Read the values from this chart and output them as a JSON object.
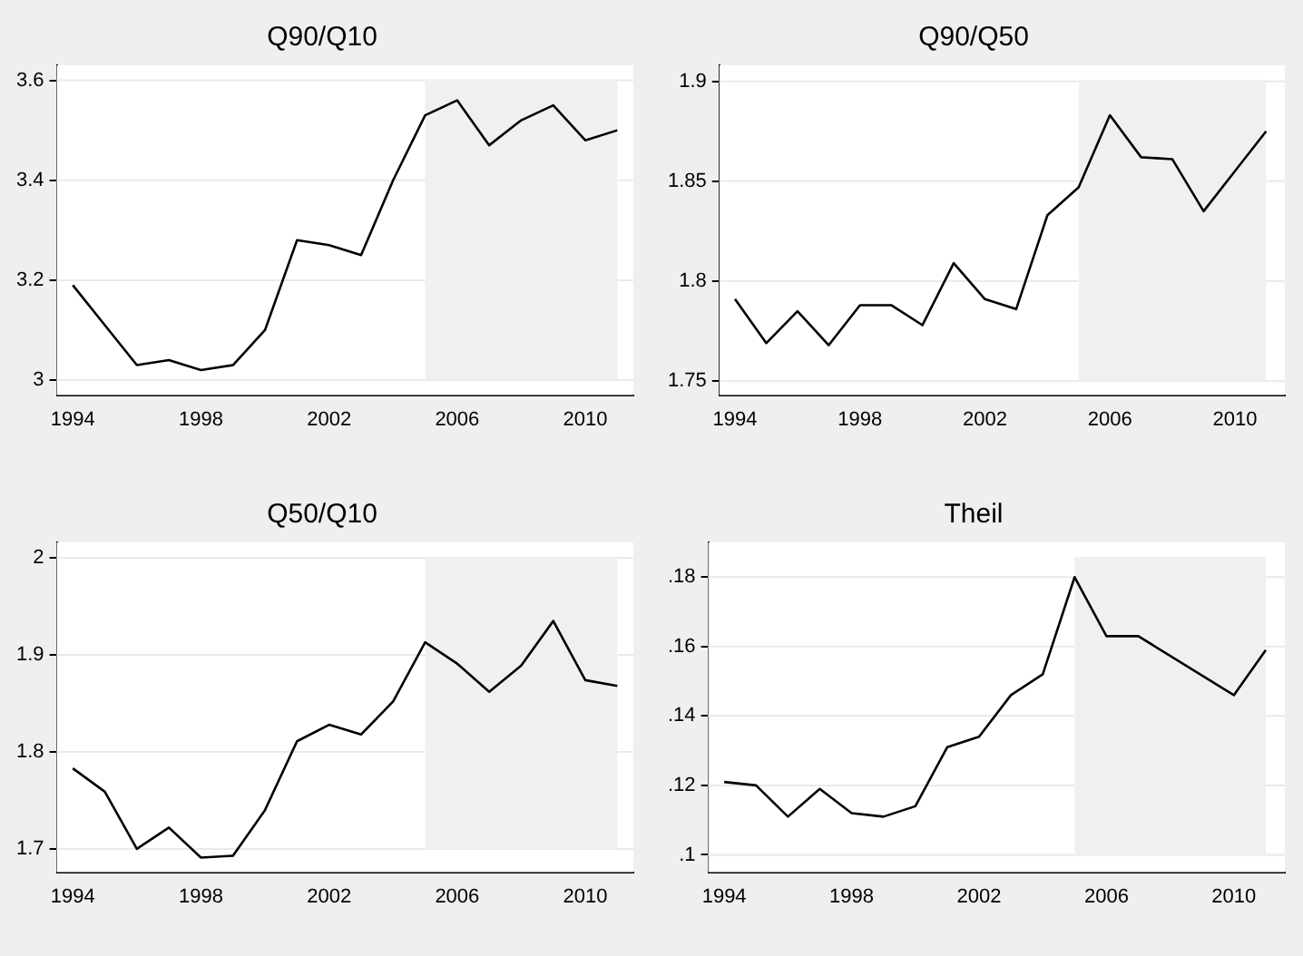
{
  "chart_data": [
    {
      "type": "line",
      "title": "Q90/Q10",
      "x": [
        1994,
        1995,
        1996,
        1997,
        1998,
        1999,
        2000,
        2001,
        2002,
        2003,
        2004,
        2005,
        2006,
        2007,
        2008,
        2009,
        2010,
        2011
      ],
      "values": [
        3.19,
        3.11,
        3.03,
        3.04,
        3.02,
        3.03,
        3.1,
        3.28,
        3.27,
        3.25,
        3.4,
        3.53,
        3.56,
        3.47,
        3.52,
        3.55,
        3.48,
        3.5
      ],
      "color": "#000000",
      "marker": "none",
      "xlim": [
        1993.5,
        2011.5
      ],
      "xticks": [
        1994,
        1998,
        2002,
        2006,
        2010
      ],
      "ylim": [
        2.97,
        3.63
      ],
      "yticks": [
        3,
        3.2,
        3.4,
        3.6
      ],
      "grid": "y",
      "bands": [
        {
          "axis": "x",
          "from": 2005,
          "to": 2011,
          "color": "#f0f0f0"
        }
      ]
    },
    {
      "type": "line",
      "title": "Q90/Q50",
      "x": [
        1994,
        1995,
        1996,
        1997,
        1998,
        1999,
        2000,
        2001,
        2002,
        2003,
        2004,
        2005,
        2006,
        2007,
        2008,
        2009,
        2010,
        2011
      ],
      "values": [
        1.791,
        1.769,
        1.785,
        1.768,
        1.788,
        1.788,
        1.778,
        1.809,
        1.791,
        1.786,
        1.833,
        1.847,
        1.883,
        1.862,
        1.861,
        1.835,
        1.855,
        1.875
      ],
      "color": "#000000",
      "marker": "none",
      "xlim": [
        1993.5,
        2011.6
      ],
      "xticks": [
        1994,
        1998,
        2002,
        2006,
        2010
      ],
      "ylim": [
        1.743,
        1.908
      ],
      "yticks": [
        1.75,
        1.8,
        1.85,
        1.9
      ],
      "grid": "y",
      "bands": [
        {
          "axis": "x",
          "from": 2005,
          "to": 2011,
          "color": "#f0f0f0"
        }
      ]
    },
    {
      "type": "line",
      "title": "Q50/Q10",
      "x": [
        1994,
        1995,
        1996,
        1997,
        1998,
        1999,
        2000,
        2001,
        2002,
        2003,
        2004,
        2005,
        2006,
        2007,
        2008,
        2009,
        2010,
        2011
      ],
      "values": [
        1.783,
        1.759,
        1.7,
        1.722,
        1.691,
        1.693,
        1.74,
        1.811,
        1.828,
        1.818,
        1.852,
        1.913,
        1.891,
        1.862,
        1.889,
        1.935,
        1.874,
        1.868
      ],
      "color": "#000000",
      "marker": "none",
      "xlim": [
        1993.5,
        2011.5
      ],
      "xticks": [
        1994,
        1998,
        2002,
        2006,
        2010
      ],
      "ylim": [
        1.676,
        2.016
      ],
      "yticks": [
        1.7,
        1.8,
        1.9,
        2
      ],
      "grid": "y",
      "bands": [
        {
          "axis": "x",
          "from": 2005,
          "to": 2011,
          "color": "#f0f0f0"
        }
      ]
    },
    {
      "type": "line",
      "title": "Theil",
      "x": [
        1994,
        1995,
        1996,
        1997,
        1998,
        1999,
        2000,
        2001,
        2002,
        2003,
        2004,
        2005,
        2006,
        2007,
        2010,
        2011
      ],
      "values": [
        0.121,
        0.12,
        0.111,
        0.119,
        0.112,
        0.111,
        0.114,
        0.131,
        0.134,
        0.146,
        0.152,
        0.18,
        0.163,
        0.163,
        0.146,
        0.159
      ],
      "color": "#000000",
      "marker": "none",
      "xlim": [
        1993.5,
        2011.6
      ],
      "xticks": [
        1994,
        1998,
        2002,
        2006,
        2010
      ],
      "ylim": [
        0.095,
        0.19
      ],
      "yticks": [
        {
          "value": 0.1,
          "label": ".1"
        },
        {
          "value": 0.12,
          "label": ".12"
        },
        {
          "value": 0.14,
          "label": ".14"
        },
        {
          "value": 0.16,
          "label": ".16"
        },
        {
          "value": 0.18,
          "label": ".18"
        }
      ],
      "grid": "y",
      "bands": [
        {
          "axis": "x",
          "from": 2005,
          "to": 2011,
          "color": "#f0f0f0"
        }
      ]
    }
  ]
}
